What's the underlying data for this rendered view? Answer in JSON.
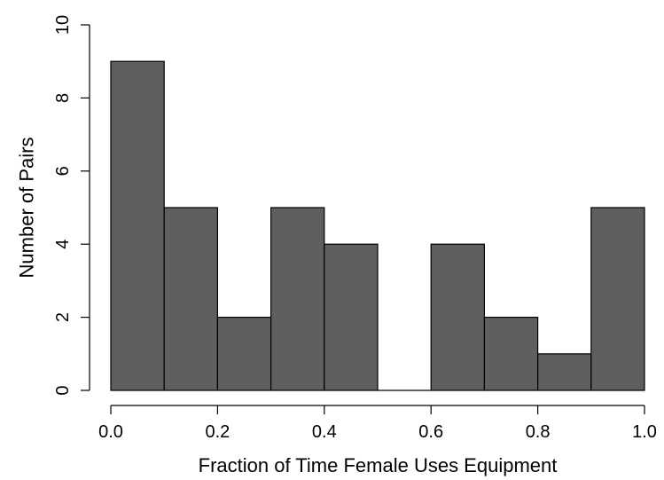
{
  "chart_data": {
    "type": "bar",
    "subtype": "histogram",
    "title": "",
    "xlabel": "Fraction of Time Female Uses Equipment",
    "ylabel": "Number of Pairs",
    "bin_edges": [
      0.0,
      0.1,
      0.2,
      0.3,
      0.4,
      0.5,
      0.6,
      0.7,
      0.8,
      0.9,
      1.0
    ],
    "values": [
      9,
      5,
      2,
      5,
      4,
      0,
      4,
      2,
      1,
      5
    ],
    "xlim": [
      0.0,
      1.0
    ],
    "ylim": [
      0,
      10
    ],
    "x_ticks": [
      "0.0",
      "0.2",
      "0.4",
      "0.6",
      "0.8",
      "1.0"
    ],
    "y_ticks": [
      "0",
      "2",
      "4",
      "6",
      "8",
      "10"
    ],
    "grid": false,
    "legend": "none",
    "bar_color": "#5f5f5f",
    "edge_color": "#000000"
  }
}
